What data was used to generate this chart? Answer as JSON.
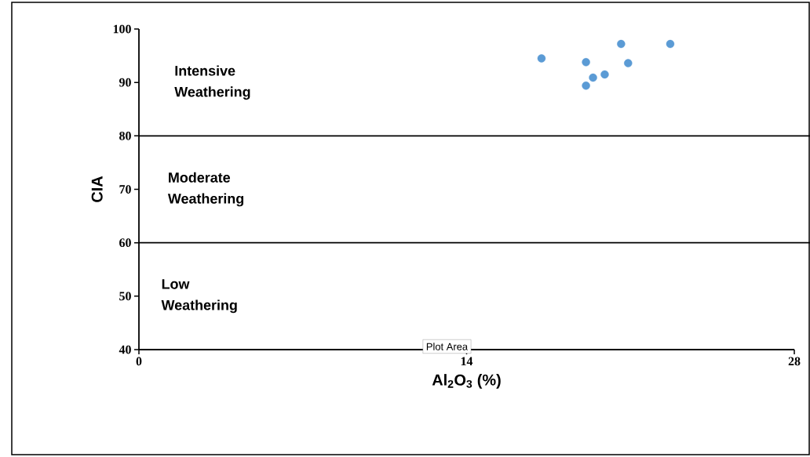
{
  "chart_data": {
    "type": "scatter",
    "xlabel": "Al$_{2}$O$_{3}$ (%)",
    "ylabel": "CIA",
    "x": [
      17.2,
      19.1,
      20.6,
      22.7,
      20.9,
      19.9,
      19.4,
      19.1
    ],
    "series": [
      {
        "color": "#5b9bd5",
        "values": [
          94.5,
          93.8,
          97.2,
          97.2,
          93.6,
          91.5,
          90.9,
          89.4
        ]
      }
    ],
    "xlim": [
      0,
      28
    ],
    "ylim": [
      40,
      100
    ],
    "xticks": [
      0,
      14,
      28
    ],
    "yticks": [
      40,
      50,
      60,
      70,
      80,
      90,
      100
    ],
    "ref_lines": [
      {
        "axis": "y",
        "value": 80,
        "color": "#000000"
      },
      {
        "axis": "y",
        "value": 60,
        "color": "#000000"
      }
    ],
    "annotations": [
      "Intensive Weathering",
      "Moderate Weathering",
      "Low Weathering",
      "Plot Area"
    ],
    "marker": "circle",
    "grid": false
  }
}
